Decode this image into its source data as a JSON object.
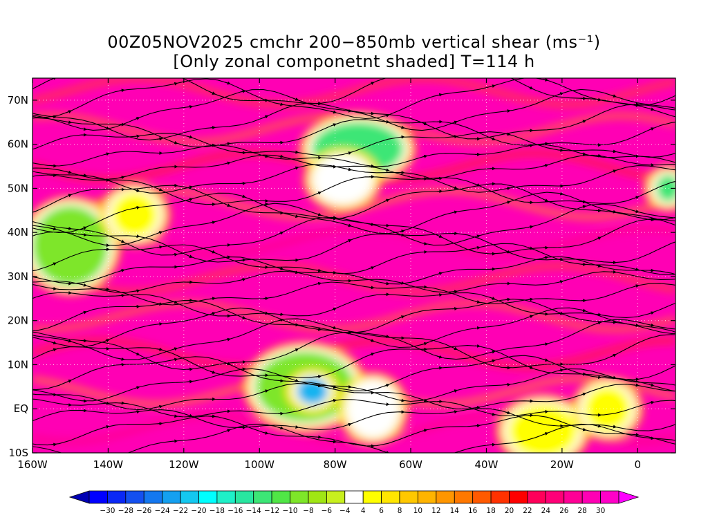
{
  "header": {
    "title_line1": "00Z05NOV2025 cmchr 200−850mb vertical shear (ms⁻¹)",
    "title_line2": "[Only zonal componetnt shaded] T=114 h"
  },
  "map": {
    "lon_range": [
      -160,
      10
    ],
    "lat_range": [
      -10,
      75
    ],
    "lat_ticks": [
      {
        "value": 70,
        "label": "70N"
      },
      {
        "value": 60,
        "label": "60N"
      },
      {
        "value": 50,
        "label": "50N"
      },
      {
        "value": 40,
        "label": "40N"
      },
      {
        "value": 30,
        "label": "30N"
      },
      {
        "value": 20,
        "label": "20N"
      },
      {
        "value": 10,
        "label": "10N"
      },
      {
        "value": 0,
        "label": "EQ"
      },
      {
        "value": -10,
        "label": "10S"
      }
    ],
    "lon_ticks": [
      {
        "value": -160,
        "label": "160W"
      },
      {
        "value": -140,
        "label": "140W"
      },
      {
        "value": -120,
        "label": "120W"
      },
      {
        "value": -100,
        "label": "100W"
      },
      {
        "value": -80,
        "label": "80W"
      },
      {
        "value": -60,
        "label": "60W"
      },
      {
        "value": -40,
        "label": "40W"
      },
      {
        "value": -20,
        "label": "20W"
      },
      {
        "value": 0,
        "label": "0"
      }
    ],
    "background_color": "#ff00b4",
    "weak_regions": [
      {
        "lon": -150,
        "lat": 37,
        "rx": 10,
        "ry": 9,
        "color": "#7ee629"
      },
      {
        "lon": -133,
        "lat": 44,
        "rx": 6,
        "ry": 5,
        "color": "#ffff00"
      },
      {
        "lon": -74,
        "lat": 59,
        "rx": 12,
        "ry": 6,
        "color": "#3ce676"
      },
      {
        "lon": -78,
        "lat": 52,
        "rx": 7,
        "ry": 5,
        "color": "#ffffff"
      },
      {
        "lon": -88,
        "lat": 5,
        "rx": 13,
        "ry": 8,
        "color": "#7ee629"
      },
      {
        "lon": -86,
        "lat": 4,
        "rx": 4,
        "ry": 3,
        "color": "#14b4f0"
      },
      {
        "lon": -70,
        "lat": 0,
        "rx": 6,
        "ry": 6,
        "color": "#ffffff"
      },
      {
        "lon": -25,
        "lat": -5,
        "rx": 9,
        "ry": 6,
        "color": "#ffff00"
      },
      {
        "lon": -8,
        "lat": 0,
        "rx": 6,
        "ry": 5,
        "color": "#ffff00"
      },
      {
        "lon": 8,
        "lat": 50,
        "rx": 3,
        "ry": 3,
        "color": "#3ce676"
      }
    ]
  },
  "colorbar": {
    "labels": [
      "−30",
      "−28",
      "−26",
      "−24",
      "−22",
      "−20",
      "−18",
      "−16",
      "−14",
      "−12",
      "−10",
      "−8",
      "−6",
      "−4",
      "4",
      "6",
      "8",
      "10",
      "12",
      "14",
      "16",
      "18",
      "20",
      "22",
      "24",
      "26",
      "28",
      "30"
    ],
    "colors": [
      "#0000ff",
      "#0a28f5",
      "#1450f0",
      "#1478f0",
      "#14a0f0",
      "#14c8f0",
      "#00ffff",
      "#1ef0c8",
      "#28e6a0",
      "#3ce676",
      "#50e646",
      "#7ee629",
      "#a0e614",
      "#c8f01e",
      "#ffffff",
      "#ffff00",
      "#ffe600",
      "#ffc800",
      "#ffb400",
      "#ff9600",
      "#ff7800",
      "#ff5a00",
      "#ff3200",
      "#ff0000",
      "#ff005a",
      "#ff0078",
      "#ff0096",
      "#ff00b4",
      "#ff00c8"
    ],
    "low_arrow_color": "#0000b4",
    "high_arrow_color": "#ff00ff"
  }
}
